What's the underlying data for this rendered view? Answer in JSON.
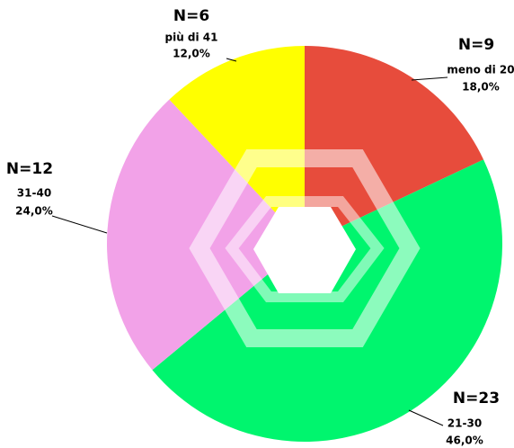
{
  "chart_data": {
    "type": "pie",
    "categories": [
      "meno di 20",
      "21-30",
      "31-40",
      "più di 41"
    ],
    "values": [
      18,
      46,
      24,
      12
    ],
    "value_labels": [
      "18,0%",
      "46,0%",
      "24,0%",
      "12,0%"
    ],
    "count_labels": [
      "N=9",
      "N=23",
      "N=12",
      "N=6"
    ],
    "colors": [
      "#e74c3c",
      "#00f56e",
      "#f2a2e8",
      "#ffff00"
    ]
  }
}
